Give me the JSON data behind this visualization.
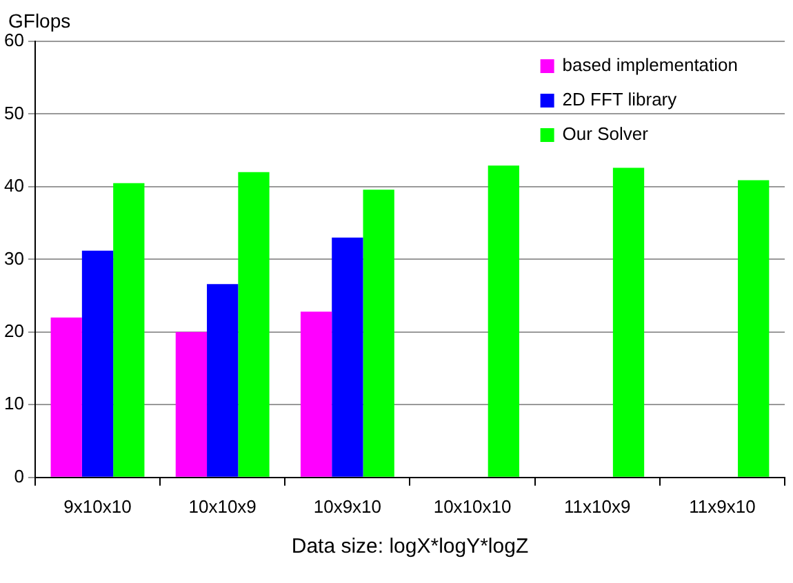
{
  "chart_data": {
    "type": "bar",
    "ylabel": "GFlops",
    "xlabel": "Data size: logX*logY*logZ",
    "categories": [
      "9x10x10",
      "10x10x9",
      "10x9x10",
      "10x10x10",
      "11x10x9",
      "11x9x10"
    ],
    "series": [
      {
        "name": "based implementation",
        "color": "#ff00ff",
        "values": [
          22,
          20,
          22.8,
          null,
          null,
          null
        ]
      },
      {
        "name": "2D FFT library",
        "color": "#0000ff",
        "values": [
          31.2,
          26.6,
          33,
          null,
          null,
          null
        ]
      },
      {
        "name": "Our Solver",
        "color": "#00ff00",
        "values": [
          40.5,
          42,
          39.6,
          42.9,
          42.6,
          40.9
        ]
      }
    ],
    "ylim": [
      0,
      60
    ],
    "yticks": [
      0,
      10,
      20,
      30,
      40,
      50,
      60
    ],
    "grid": "y",
    "legend": "top right"
  }
}
